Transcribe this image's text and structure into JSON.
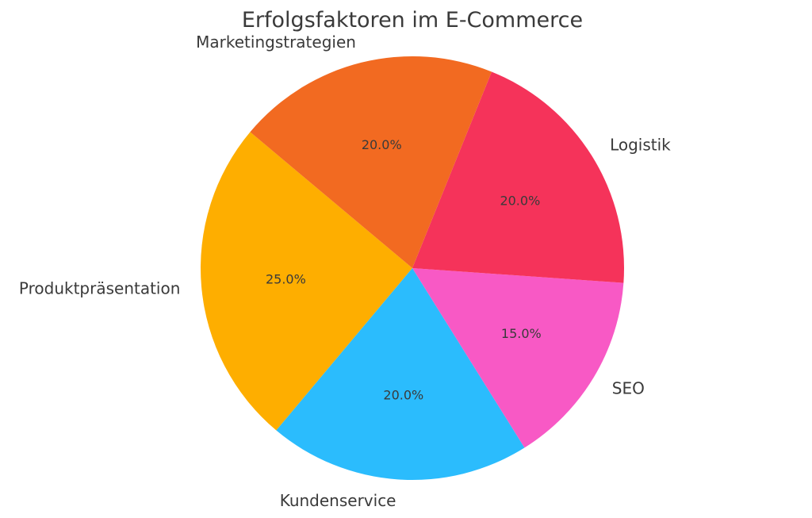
{
  "chart_data": {
    "type": "pie",
    "title": "Erfolgsfaktoren im E-Commerce",
    "categories": [
      "Produktpräsentation",
      "Kundenservice",
      "SEO",
      "Logistik",
      "Marketingstrategien"
    ],
    "values": [
      25,
      20,
      15,
      20,
      20
    ],
    "value_labels": [
      "25.0%",
      "20.0%",
      "15.0%",
      "20.0%",
      "20.0%"
    ],
    "colors": [
      "#FEAE00",
      "#2BBCFD",
      "#F859C5",
      "#F5335A",
      "#F26A21"
    ],
    "start_angle_deg": 140,
    "direction": "counterclockwise",
    "legend": "none"
  }
}
